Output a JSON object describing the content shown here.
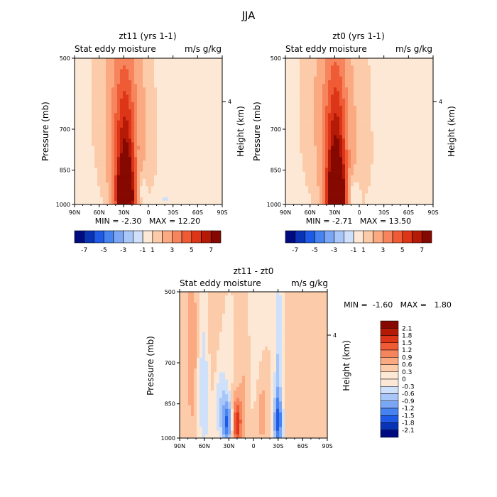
{
  "figure_title": "JJA",
  "chart_data": [
    {
      "type": "heatmap",
      "title": "zt11 (yrs 1-1)",
      "subtitle_left": "Stat eddy moisture",
      "subtitle_right": "m/s g/kg",
      "ylabel": "Pressure (mb)",
      "y2label": "Height (km)",
      "x_ticks": [
        "90N",
        "60N",
        "30N",
        "0",
        "30S",
        "60S",
        "90S"
      ],
      "y_ticks": [
        "500",
        "700",
        "850",
        "1000"
      ],
      "y2_ticks": [
        "4"
      ],
      "min_max_text": "MIN = -2.30   MAX = 12.20",
      "colorbar_labels": [
        "-7",
        "-5",
        "-3",
        "-1",
        "1",
        "3",
        "5",
        "7"
      ],
      "colorbar_colors": [
        "#000b80",
        "#0a32b4",
        "#1e5ae6",
        "#4682f0",
        "#7aa6f5",
        "#a8c6f8",
        "#cfe0fb",
        "#fde8d5",
        "#fccbaa",
        "#fba981",
        "#f6845d",
        "#ee5b35",
        "#dd3518",
        "#b51a07",
        "#850900"
      ],
      "blobs": [
        {
          "lat": 28,
          "p": 975,
          "v": 8.5,
          "slat": 7,
          "sp": 90
        },
        {
          "lat": 28,
          "p": 820,
          "v": 4.0,
          "slat": 9,
          "sp": 180
        },
        {
          "lat": 30,
          "p": 650,
          "v": 1.6,
          "slat": 12,
          "sp": 220
        },
        {
          "lat": 40,
          "p": 600,
          "v": 0.8,
          "slat": 30,
          "sp": 400
        },
        {
          "lat": 0,
          "p": 800,
          "v": 0.5,
          "slat": 10,
          "sp": 350
        },
        {
          "lat": -55,
          "p": 600,
          "v": 0.4,
          "slat": 10,
          "sp": 350
        },
        {
          "lat": 10,
          "p": 930,
          "v": -0.9,
          "slat": 6,
          "sp": 60
        },
        {
          "lat": -20,
          "p": 975,
          "v": -1.2,
          "slat": 8,
          "sp": 40
        },
        {
          "lat": -60,
          "p": 950,
          "v": -0.6,
          "slat": 15,
          "sp": 80
        }
      ]
    },
    {
      "type": "heatmap",
      "title": "zt0 (yrs 1-1)",
      "subtitle_left": "Stat eddy moisture",
      "subtitle_right": "m/s g/kg",
      "ylabel": "Pressure (mb)",
      "y2label": "Height (km)",
      "x_ticks": [
        "90N",
        "60N",
        "30N",
        "0",
        "30S",
        "60S",
        "90S"
      ],
      "y_ticks": [
        "500",
        "700",
        "850",
        "1000"
      ],
      "y2_ticks": [
        "4"
      ],
      "min_max_text": "MIN = -2.71   MAX = 13.50",
      "colorbar_labels": [
        "-7",
        "-5",
        "-3",
        "-1",
        "1",
        "3",
        "5",
        "7"
      ],
      "colorbar_colors": [
        "#000b80",
        "#0a32b4",
        "#1e5ae6",
        "#4682f0",
        "#7aa6f5",
        "#a8c6f8",
        "#cfe0fb",
        "#fde8d5",
        "#fccbaa",
        "#fba981",
        "#f6845d",
        "#ee5b35",
        "#dd3518",
        "#b51a07",
        "#850900"
      ],
      "blobs": [
        {
          "lat": 28,
          "p": 975,
          "v": 9.0,
          "slat": 7,
          "sp": 90
        },
        {
          "lat": 28,
          "p": 820,
          "v": 4.2,
          "slat": 9,
          "sp": 180
        },
        {
          "lat": 30,
          "p": 650,
          "v": 1.7,
          "slat": 12,
          "sp": 220
        },
        {
          "lat": 45,
          "p": 600,
          "v": 0.8,
          "slat": 30,
          "sp": 400
        },
        {
          "lat": -5,
          "p": 800,
          "v": 0.6,
          "slat": 12,
          "sp": 350
        },
        {
          "lat": -45,
          "p": 650,
          "v": 0.4,
          "slat": 10,
          "sp": 350
        },
        {
          "lat": 8,
          "p": 950,
          "v": -0.9,
          "slat": 6,
          "sp": 50
        },
        {
          "lat": -25,
          "p": 975,
          "v": -1.0,
          "slat": 8,
          "sp": 40
        }
      ]
    },
    {
      "type": "heatmap",
      "title": "zt11 - zt0",
      "subtitle_left": "Stat eddy moisture",
      "subtitle_right": "m/s g/kg",
      "ylabel": "Pressure (mb)",
      "y2label": "Height (km)",
      "x_ticks": [
        "90N",
        "60N",
        "30N",
        "0",
        "30S",
        "60S",
        "90S"
      ],
      "y_ticks": [
        "500",
        "700",
        "850",
        "1000"
      ],
      "y2_ticks": [
        "4"
      ],
      "min_max_text": "MIN =  -1.60   MAX =   1.80",
      "colorbar_labels": [
        "2.1",
        "1.8",
        "1.5",
        "1.2",
        "0.9",
        "0.6",
        "0.3",
        "0",
        "-0.3",
        "-0.6",
        "-0.9",
        "-1.2",
        "-1.5",
        "-1.8",
        "-2.1"
      ],
      "colorbar_colors": [
        "#850900",
        "#b51a07",
        "#dd3518",
        "#ee5b35",
        "#f6845d",
        "#fba981",
        "#fccbaa",
        "#fde8d5",
        "#cfe0fb",
        "#a8c6f8",
        "#7aa6f5",
        "#4682f0",
        "#1e5ae6",
        "#0a32b4",
        "#000b80"
      ],
      "blobs": [
        {
          "lat": 20,
          "p": 930,
          "v": 1.4,
          "slat": 4,
          "sp": 80
        },
        {
          "lat": 32,
          "p": 930,
          "v": -1.4,
          "slat": 4,
          "sp": 70
        },
        {
          "lat": 40,
          "p": 850,
          "v": -0.6,
          "slat": 6,
          "sp": 120
        },
        {
          "lat": -30,
          "p": 930,
          "v": -1.4,
          "slat": 4,
          "sp": 90
        },
        {
          "lat": -30,
          "p": 650,
          "v": -0.6,
          "slat": 3,
          "sp": 250
        },
        {
          "lat": 60,
          "p": 800,
          "v": -0.6,
          "slat": 5,
          "sp": 200
        },
        {
          "lat": 75,
          "p": 650,
          "v": 0.5,
          "slat": 5,
          "sp": 250
        },
        {
          "lat": 10,
          "p": 700,
          "v": 0.4,
          "slat": 5,
          "sp": 300
        },
        {
          "lat": -10,
          "p": 880,
          "v": 0.5,
          "slat": 5,
          "sp": 120
        },
        {
          "lat": -55,
          "p": 700,
          "v": 0.3,
          "slat": 10,
          "sp": 350
        },
        {
          "lat": 0,
          "p": 600,
          "v": -0.3,
          "slat": 8,
          "sp": 200
        },
        {
          "lat": 50,
          "p": 600,
          "v": 0.3,
          "slat": 6,
          "sp": 250
        }
      ]
    }
  ]
}
